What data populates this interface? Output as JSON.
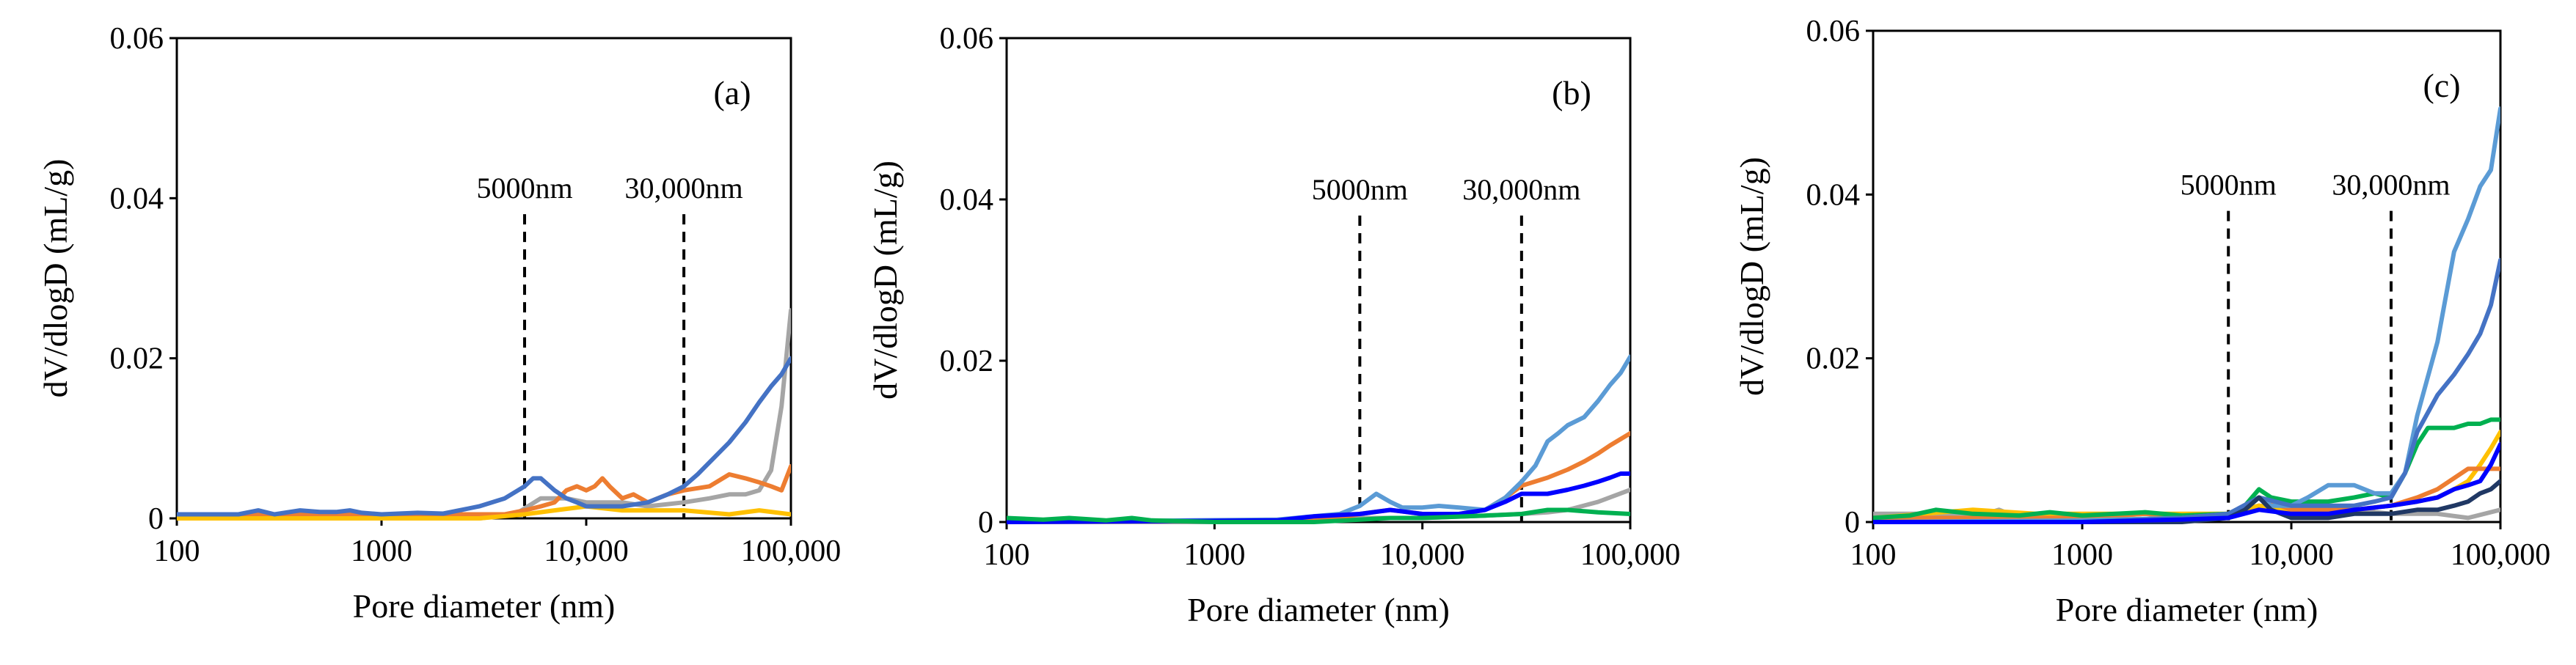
{
  "chart_data": [
    {
      "type": "line",
      "panel_label": "(a)",
      "xlabel": "Pore diameter (nm)",
      "ylabel": "dV/dlogD (mL/g)",
      "x_scale": "log",
      "xlim": [
        100,
        100000
      ],
      "ylim": [
        0,
        0.06
      ],
      "x_ticks": [
        100,
        1000,
        10000,
        100000
      ],
      "x_tick_labels": [
        "100",
        "1000",
        "10,000",
        "100,000"
      ],
      "y_ticks": [
        0,
        0.02,
        0.04,
        0.06
      ],
      "y_tick_labels": [
        "0",
        "0.02",
        "0.04",
        "0.06"
      ],
      "annotations": [
        {
          "x": 5000,
          "label": "5000nm"
        },
        {
          "x": 30000,
          "label": "30,000nm"
        }
      ],
      "series": [
        {
          "name": "gray",
          "color": "#A5A5A5",
          "x": [
            100,
            1000,
            3000,
            4500,
            6000,
            8000,
            10000,
            15000,
            20000,
            30000,
            40000,
            50000,
            60000,
            70000,
            80000,
            90000,
            100000
          ],
          "y": [
            0,
            0,
            0,
            0.0005,
            0.0025,
            0.0025,
            0.002,
            0.002,
            0.0015,
            0.002,
            0.0025,
            0.003,
            0.003,
            0.0035,
            0.006,
            0.014,
            0.026
          ]
        },
        {
          "name": "orange",
          "color": "#ED7D31",
          "x": [
            100,
            2000,
            4000,
            5000,
            6000,
            7000,
            8000,
            9000,
            10000,
            11000,
            12000,
            13000,
            15000,
            17000,
            20000,
            25000,
            30000,
            40000,
            50000,
            60000,
            70000,
            80000,
            90000,
            100000
          ],
          "y": [
            0.0005,
            0.0005,
            0.0005,
            0.001,
            0.0015,
            0.002,
            0.0035,
            0.004,
            0.0035,
            0.004,
            0.005,
            0.004,
            0.0025,
            0.003,
            0.002,
            0.003,
            0.0035,
            0.004,
            0.0055,
            0.005,
            0.0045,
            0.004,
            0.0035,
            0.0065
          ]
        },
        {
          "name": "yellow",
          "color": "#FFC000",
          "x": [
            100,
            3000,
            5000,
            7000,
            10000,
            15000,
            20000,
            30000,
            50000,
            70000,
            100000
          ],
          "y": [
            0,
            0,
            0.0005,
            0.001,
            0.0015,
            0.001,
            0.001,
            0.001,
            0.0005,
            0.001,
            0.0005
          ]
        },
        {
          "name": "blue",
          "color": "#4472C4",
          "x": [
            100,
            200,
            250,
            300,
            400,
            500,
            600,
            700,
            800,
            1000,
            1500,
            2000,
            3000,
            4000,
            5000,
            5500,
            6000,
            7000,
            8000,
            9000,
            10000,
            12000,
            15000,
            20000,
            25000,
            30000,
            35000,
            40000,
            50000,
            60000,
            70000,
            80000,
            90000,
            100000
          ],
          "y": [
            0.0005,
            0.0005,
            0.001,
            0.0005,
            0.001,
            0.0008,
            0.0008,
            0.001,
            0.0007,
            0.0005,
            0.0007,
            0.0006,
            0.0015,
            0.0025,
            0.004,
            0.005,
            0.005,
            0.0035,
            0.0025,
            0.002,
            0.0015,
            0.0015,
            0.0015,
            0.002,
            0.003,
            0.004,
            0.0055,
            0.007,
            0.0095,
            0.012,
            0.0145,
            0.0165,
            0.018,
            0.02
          ]
        }
      ]
    },
    {
      "type": "line",
      "panel_label": "(b)",
      "xlabel": "Pore diameter (nm)",
      "ylabel": "dV/dlogD (mL/g)",
      "x_scale": "log",
      "xlim": [
        100,
        100000
      ],
      "ylim": [
        0,
        0.06
      ],
      "x_ticks": [
        100,
        1000,
        10000,
        100000
      ],
      "x_tick_labels": [
        "100",
        "1000",
        "10,000",
        "100,000"
      ],
      "y_ticks": [
        0,
        0.02,
        0.04,
        0.06
      ],
      "y_tick_labels": [
        "0",
        "0.02",
        "0.04",
        "0.06"
      ],
      "annotations": [
        {
          "x": 5000,
          "label": "5000nm"
        },
        {
          "x": 30000,
          "label": "30,000nm"
        }
      ],
      "series": [
        {
          "name": "gray",
          "color": "#A5A5A5",
          "x": [
            100,
            2000,
            5000,
            10000,
            20000,
            30000,
            40000,
            50000,
            70000,
            100000
          ],
          "y": [
            0,
            0,
            0.0005,
            0.0005,
            0.0008,
            0.001,
            0.0012,
            0.0015,
            0.0025,
            0.004
          ]
        },
        {
          "name": "orange",
          "color": "#ED7D31",
          "x": [
            100,
            2000,
            4000,
            5000,
            7000,
            10000,
            15000,
            20000,
            25000,
            30000,
            40000,
            50000,
            60000,
            70000,
            80000,
            100000
          ],
          "y": [
            0,
            0.0002,
            0.0005,
            0.001,
            0.0015,
            0.001,
            0.001,
            0.0015,
            0.003,
            0.0045,
            0.0055,
            0.0065,
            0.0075,
            0.0085,
            0.0095,
            0.011
          ]
        },
        {
          "name": "light-blue",
          "color": "#5B9BD5",
          "x": [
            100,
            2000,
            4000,
            5000,
            6000,
            7000,
            8000,
            10000,
            12000,
            15000,
            20000,
            25000,
            30000,
            35000,
            40000,
            45000,
            50000,
            60000,
            70000,
            80000,
            90000,
            100000
          ],
          "y": [
            0,
            0.0003,
            0.001,
            0.002,
            0.0035,
            0.0025,
            0.0018,
            0.0018,
            0.002,
            0.0018,
            0.0015,
            0.003,
            0.005,
            0.007,
            0.01,
            0.011,
            0.012,
            0.013,
            0.015,
            0.017,
            0.0185,
            0.0205
          ]
        },
        {
          "name": "blue",
          "color": "#0000FF",
          "x": [
            100,
            2000,
            3000,
            5000,
            7000,
            10000,
            15000,
            20000,
            25000,
            30000,
            40000,
            50000,
            60000,
            70000,
            80000,
            90000,
            100000
          ],
          "y": [
            0,
            0.0002,
            0.0007,
            0.001,
            0.0015,
            0.001,
            0.001,
            0.0015,
            0.0025,
            0.0035,
            0.0035,
            0.004,
            0.0045,
            0.005,
            0.0055,
            0.006,
            0.006
          ]
        },
        {
          "name": "green",
          "color": "#00B050",
          "x": [
            100,
            150,
            200,
            300,
            400,
            500,
            1000,
            3000,
            5000,
            7000,
            10000,
            20000,
            30000,
            40000,
            50000,
            70000,
            100000
          ],
          "y": [
            0.0005,
            0.0003,
            0.0005,
            0.0002,
            0.0005,
            0.0002,
            0,
            0,
            0.0003,
            0.0005,
            0.0005,
            0.0008,
            0.001,
            0.0015,
            0.0015,
            0.0012,
            0.001
          ]
        }
      ]
    },
    {
      "type": "line",
      "panel_label": "(c)",
      "xlabel": "Pore diameter (nm)",
      "ylabel": "dV/dlogD (mL/g)",
      "x_scale": "log",
      "xlim": [
        100,
        100000
      ],
      "ylim": [
        0,
        0.06
      ],
      "x_ticks": [
        100,
        1000,
        10000,
        100000
      ],
      "x_tick_labels": [
        "100",
        "1000",
        "10,000",
        "100,000"
      ],
      "y_ticks": [
        0,
        0.02,
        0.04,
        0.06
      ],
      "y_tick_labels": [
        "0",
        "0.02",
        "0.04",
        "0.06"
      ],
      "annotations": [
        {
          "x": 5000,
          "label": "5000nm"
        },
        {
          "x": 30000,
          "label": "30,000nm"
        }
      ],
      "series": [
        {
          "name": "gray",
          "color": "#A5A5A5",
          "x": [
            100,
            200,
            300,
            400,
            500,
            700,
            1000,
            2000,
            3000,
            5000,
            7000,
            10000,
            15000,
            20000,
            30000,
            50000,
            70000,
            100000
          ],
          "y": [
            0.001,
            0.001,
            0.0005,
            0.0015,
            0.0005,
            0.001,
            0.0005,
            0.001,
            0.0005,
            0.001,
            0.002,
            0.0015,
            0.001,
            0.0015,
            0.001,
            0.001,
            0.0005,
            0.0015
          ]
        },
        {
          "name": "yellow",
          "color": "#FFC000",
          "x": [
            100,
            300,
            600,
            1000,
            2000,
            5000,
            7000,
            10000,
            20000,
            30000,
            40000,
            50000,
            60000,
            70000,
            80000,
            90000,
            100000
          ],
          "y": [
            0.0005,
            0.0015,
            0.001,
            0.001,
            0.001,
            0.001,
            0.002,
            0.0015,
            0.0015,
            0.002,
            0.0025,
            0.003,
            0.004,
            0.005,
            0.007,
            0.009,
            0.011
          ]
        },
        {
          "name": "orange",
          "color": "#ED7D31",
          "x": [
            100,
            1000,
            2000,
            5000,
            7000,
            10000,
            20000,
            30000,
            40000,
            50000,
            70000,
            100000
          ],
          "y": [
            0.0005,
            0.0005,
            0.001,
            0.0005,
            0.003,
            0.0015,
            0.0015,
            0.002,
            0.003,
            0.004,
            0.0065,
            0.0065
          ]
        },
        {
          "name": "green",
          "color": "#00B050",
          "x": [
            100,
            150,
            200,
            300,
            500,
            700,
            1000,
            2000,
            3000,
            5000,
            6000,
            7000,
            8000,
            10000,
            15000,
            20000,
            25000,
            30000,
            35000,
            40000,
            45000,
            50000,
            60000,
            70000,
            80000,
            90000,
            100000
          ],
          "y": [
            0.0005,
            0.0008,
            0.0015,
            0.001,
            0.0008,
            0.0012,
            0.0008,
            0.0012,
            0.0008,
            0.001,
            0.002,
            0.004,
            0.003,
            0.0025,
            0.0025,
            0.003,
            0.0035,
            0.003,
            0.006,
            0.0095,
            0.0115,
            0.0115,
            0.0115,
            0.012,
            0.012,
            0.0125,
            0.0125
          ]
        },
        {
          "name": "light-blue",
          "color": "#5B9BD5",
          "x": [
            100,
            1000,
            3000,
            5000,
            6000,
            7000,
            8000,
            10000,
            12000,
            15000,
            20000,
            25000,
            30000,
            35000,
            40000,
            50000,
            60000,
            70000,
            80000,
            90000,
            100000
          ],
          "y": [
            0,
            0.0002,
            0.0005,
            0.001,
            0.002,
            0.003,
            0.002,
            0.002,
            0.003,
            0.0045,
            0.0045,
            0.0035,
            0.0035,
            0.006,
            0.013,
            0.022,
            0.033,
            0.037,
            0.041,
            0.043,
            0.0505
          ]
        },
        {
          "name": "blue",
          "color": "#4472C4",
          "x": [
            100,
            1000,
            3000,
            5000,
            7000,
            10000,
            15000,
            20000,
            25000,
            30000,
            35000,
            40000,
            50000,
            60000,
            70000,
            80000,
            90000,
            100000
          ],
          "y": [
            0,
            0,
            0.0005,
            0.001,
            0.003,
            0.002,
            0.002,
            0.002,
            0.0025,
            0.003,
            0.006,
            0.011,
            0.0155,
            0.018,
            0.0205,
            0.023,
            0.0265,
            0.032
          ]
        },
        {
          "name": "dark-navy",
          "color": "#203864",
          "x": [
            100,
            1000,
            3000,
            5000,
            6000,
            7000,
            8000,
            10000,
            15000,
            20000,
            30000,
            40000,
            50000,
            60000,
            70000,
            80000,
            90000,
            100000
          ],
          "y": [
            0,
            0,
            0,
            0.0005,
            0.0015,
            0.003,
            0.0015,
            0.0005,
            0.0005,
            0.001,
            0.001,
            0.0015,
            0.0015,
            0.002,
            0.0025,
            0.0035,
            0.004,
            0.005
          ]
        },
        {
          "name": "royal-blue",
          "color": "#0000FF",
          "x": [
            100,
            1000,
            3000,
            5000,
            7000,
            10000,
            15000,
            20000,
            30000,
            40000,
            50000,
            60000,
            70000,
            80000,
            90000,
            100000
          ],
          "y": [
            0,
            0,
            0.0003,
            0.0005,
            0.0015,
            0.001,
            0.001,
            0.0015,
            0.002,
            0.0025,
            0.003,
            0.004,
            0.0045,
            0.005,
            0.007,
            0.0095
          ]
        }
      ]
    }
  ]
}
